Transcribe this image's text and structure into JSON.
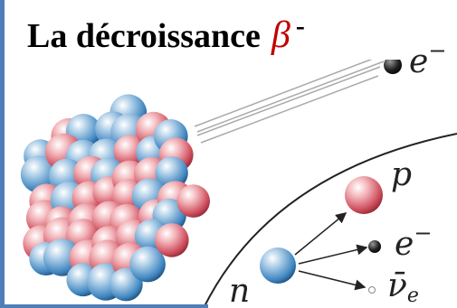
{
  "title": {
    "text": "La décroissance",
    "symbol": "β",
    "superscript": "-"
  },
  "particles": {
    "electron_out": {
      "symbol": "e",
      "charge": "−"
    },
    "proton": {
      "symbol": "p"
    },
    "electron": {
      "symbol": "e",
      "charge": "−"
    },
    "antineutrino": {
      "symbol": "ν̄",
      "subscript": "e"
    },
    "neutron": {
      "symbol": "n"
    }
  }
}
